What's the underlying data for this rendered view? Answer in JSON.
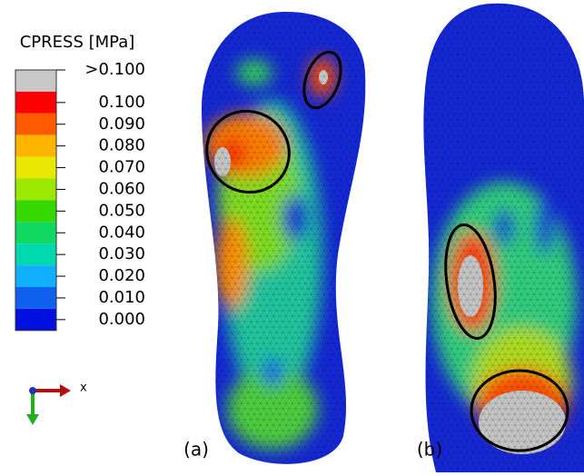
{
  "legend": {
    "title": "CPRESS [MPa]",
    "labels": [
      ">0.100",
      "0.100",
      "0.090",
      "0.080",
      "0.070",
      "0.060",
      "0.050",
      "0.040",
      "0.030",
      "0.020",
      "0.010",
      "0.000"
    ],
    "colors": [
      "#c8c8c8",
      "#ff0000",
      "#ff5a00",
      "#ffb400",
      "#e8e800",
      "#9be800",
      "#36d800",
      "#10d860",
      "#00d8b0",
      "#10b0ff",
      "#1060f0",
      "#0010e0"
    ]
  },
  "axis_triad": {
    "label": "x"
  },
  "panels": [
    {
      "label": "(a)"
    },
    {
      "label": "(b)"
    }
  ]
}
